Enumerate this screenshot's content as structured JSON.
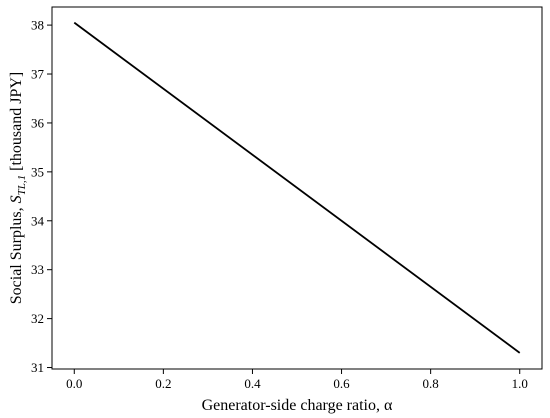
{
  "chart_data": {
    "type": "line",
    "title": "",
    "xlabel": "Generator-side charge ratio, α",
    "ylabel": {
      "prefix": "Social Surplus, ",
      "symbol": "S",
      "subscript": "TL,1",
      "suffix": " [thousand JPY]"
    },
    "xlim": [
      -0.05,
      1.05
    ],
    "ylim": [
      30.97,
      38.37
    ],
    "x_ticks": [
      0.0,
      0.2,
      0.4,
      0.6,
      0.8,
      1.0
    ],
    "x_tick_labels": [
      "0.0",
      "0.2",
      "0.4",
      "0.6",
      "0.8",
      "1.0"
    ],
    "y_ticks": [
      31,
      32,
      33,
      34,
      35,
      36,
      37,
      38
    ],
    "y_tick_labels": [
      "31",
      "32",
      "33",
      "34",
      "35",
      "36",
      "37",
      "38"
    ],
    "grid": false,
    "series": [
      {
        "color": "#000000",
        "x": [
          0.0,
          1.0
        ],
        "y": [
          38.05,
          31.3
        ]
      }
    ]
  }
}
